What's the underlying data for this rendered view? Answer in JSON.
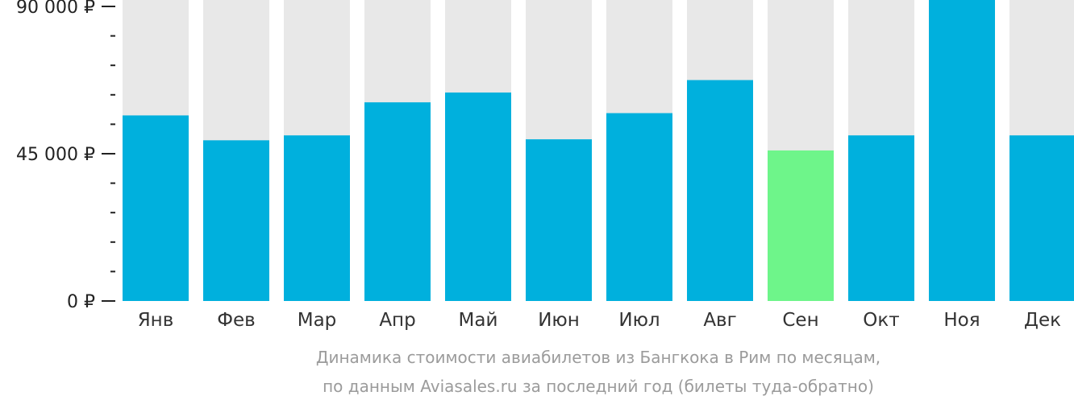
{
  "chart_data": {
    "type": "bar",
    "categories": [
      "Янв",
      "Фев",
      "Мар",
      "Апр",
      "Май",
      "Июн",
      "Июл",
      "Авг",
      "Сен",
      "Окт",
      "Ноя",
      "Дек"
    ],
    "values": [
      56700,
      49100,
      50600,
      60700,
      63700,
      49400,
      57400,
      67500,
      46000,
      50600,
      92000,
      50600
    ],
    "ylim": [
      0,
      94000
    ],
    "yticks": [
      {
        "value": 0,
        "label": "0 ₽"
      },
      {
        "value": 45000,
        "label": "45 000 ₽"
      },
      {
        "value": 90000,
        "label": "90 000 ₽"
      }
    ],
    "minor_tick_step": 9000,
    "highlight_index": 8,
    "colors": {
      "bar": "#00b0dd",
      "highlight": "#6ef58a",
      "track": "#e8e8e8",
      "axis": "#222222"
    },
    "caption": [
      "Динамика стоимости авиабилетов из Бангкока в Рим по месяцам,",
      "по данным Aviasales.ru за последний год (билеты туда-обратно)"
    ]
  }
}
